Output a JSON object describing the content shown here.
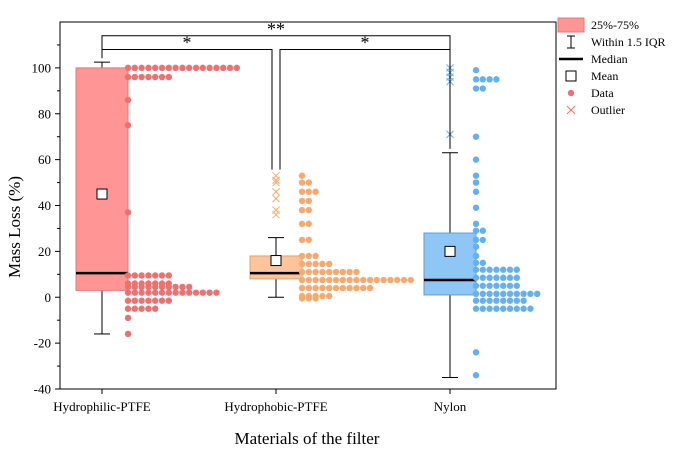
{
  "chart_data": {
    "type": "box",
    "xlabel": "Materials of the filter",
    "ylabel": "Mass Loss (%)",
    "ylim": [
      -40,
      120
    ],
    "yticks": [
      -40,
      -20,
      0,
      20,
      40,
      60,
      80,
      100
    ],
    "categories": [
      "Hydrophilic-PTFE",
      "Hydrophobic-PTFE",
      "Nylon"
    ],
    "grid": false,
    "legend_position": "outside-right",
    "legend": [
      {
        "key": "box",
        "label": "25%-75%"
      },
      {
        "key": "whisker",
        "label": "Within 1.5 IQR"
      },
      {
        "key": "median",
        "label": "Median"
      },
      {
        "key": "mean",
        "label": "Mean"
      },
      {
        "key": "data",
        "label": "Data"
      },
      {
        "key": "outlier",
        "label": "Outlier"
      }
    ],
    "colors": {
      "Hydrophilic-PTFE": {
        "fill": "#ff9595",
        "edge": "#e8787a",
        "dot": "#f07070"
      },
      "Hydrophobic-PTFE": {
        "fill": "#ffc499",
        "edge": "#e0a070",
        "dot": "#f9a86e"
      },
      "Nylon": {
        "fill": "#8ec6f5",
        "edge": "#5a9fd8",
        "dot": "#64b0f0"
      }
    },
    "series": [
      {
        "name": "Hydrophilic-PTFE",
        "q1": 3,
        "median": 10.5,
        "q3": 100,
        "mean": 45,
        "whisker_low": -16,
        "whisker_high": 102.5,
        "outliers": [],
        "data_rows": [
          {
            "y": 100,
            "n": 17
          },
          {
            "y": 96,
            "n": 7
          },
          {
            "y": 86,
            "n": 1
          },
          {
            "y": 75,
            "n": 1
          },
          {
            "y": 37,
            "n": 1
          },
          {
            "y": 9.5,
            "n": 7
          },
          {
            "y": 6,
            "n": 7
          },
          {
            "y": 4.5,
            "n": 10
          },
          {
            "y": 2,
            "n": 14
          },
          {
            "y": -1.5,
            "n": 7
          },
          {
            "y": -5,
            "n": 5
          },
          {
            "y": -9,
            "n": 1
          },
          {
            "y": -16,
            "n": 1
          }
        ]
      },
      {
        "name": "Hydrophobic-PTFE",
        "q1": 8,
        "median": 10.5,
        "q3": 18,
        "mean": 16,
        "whisker_low": 0,
        "whisker_high": 26,
        "outliers": [
          53,
          51,
          50,
          46,
          43,
          38,
          36
        ],
        "data_rows": [
          {
            "y": 53,
            "n": 1
          },
          {
            "y": 50,
            "n": 2
          },
          {
            "y": 46,
            "n": 3
          },
          {
            "y": 42,
            "n": 2
          },
          {
            "y": 38,
            "n": 2
          },
          {
            "y": 32,
            "n": 2
          },
          {
            "y": 25,
            "n": 2
          },
          {
            "y": 18,
            "n": 3
          },
          {
            "y": 14.5,
            "n": 5
          },
          {
            "y": 11,
            "n": 9
          },
          {
            "y": 7.5,
            "n": 17
          },
          {
            "y": 4,
            "n": 11
          },
          {
            "y": 0.5,
            "n": 5
          },
          {
            "y": -0.5,
            "n": 3
          }
        ]
      },
      {
        "name": "Nylon",
        "q1": 1,
        "median": 7.5,
        "q3": 28,
        "mean": 20,
        "whisker_low": -35,
        "whisker_high": 63,
        "outliers": [
          100,
          98,
          96,
          94,
          71
        ],
        "data_rows": [
          {
            "y": 99,
            "n": 1
          },
          {
            "y": 95,
            "n": 4
          },
          {
            "y": 91,
            "n": 2
          },
          {
            "y": 70,
            "n": 1
          },
          {
            "y": 60,
            "n": 1
          },
          {
            "y": 53,
            "n": 1
          },
          {
            "y": 50,
            "n": 1
          },
          {
            "y": 46,
            "n": 1
          },
          {
            "y": 39,
            "n": 1
          },
          {
            "y": 32,
            "n": 1
          },
          {
            "y": 29,
            "n": 2
          },
          {
            "y": 25,
            "n": 2
          },
          {
            "y": 22,
            "n": 1
          },
          {
            "y": 18,
            "n": 1
          },
          {
            "y": 15,
            "n": 2
          },
          {
            "y": 12,
            "n": 7
          },
          {
            "y": 8.5,
            "n": 7
          },
          {
            "y": 5,
            "n": 7
          },
          {
            "y": 1.5,
            "n": 10
          },
          {
            "y": -1.5,
            "n": 8
          },
          {
            "y": -5,
            "n": 9
          },
          {
            "y": -24,
            "n": 1
          },
          {
            "y": -34,
            "n": 1
          }
        ]
      }
    ],
    "significance": [
      {
        "from": "Hydrophilic-PTFE",
        "to": "Nylon",
        "label": "**",
        "y": 114
      },
      {
        "from": "Hydrophilic-PTFE",
        "to": "Hydrophobic-PTFE",
        "label": "*",
        "y": 108
      },
      {
        "from": "Hydrophobic-PTFE",
        "to": "Nylon",
        "label": "*",
        "y": 108
      }
    ]
  }
}
